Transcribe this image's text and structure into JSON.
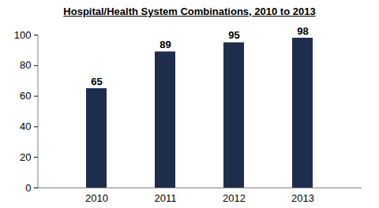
{
  "chart_data": {
    "type": "bar",
    "title": "Hospital/Health System Combinations, 2010 to 2013",
    "categories": [
      "2010",
      "2011",
      "2012",
      "2013"
    ],
    "values": [
      65,
      89,
      95,
      98
    ],
    "color": "#1f2d4d",
    "ylim": [
      0,
      100
    ],
    "yticks": [
      0,
      20,
      40,
      60,
      80,
      100
    ],
    "grid": false,
    "data_labels": true
  }
}
